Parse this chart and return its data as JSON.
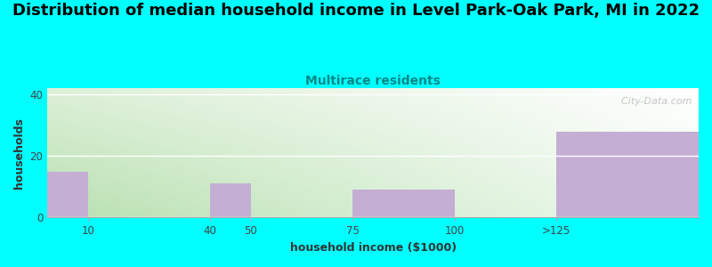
{
  "title": "Distribution of median household income in Level Park-Oak Park, MI in 2022",
  "subtitle": "Multirace residents",
  "xlabel": "household income ($1000)",
  "ylabel": "households",
  "bar_color": "#c4aed4",
  "background_color": "#00ffff",
  "plot_bg_color_topleft": "#ffffff",
  "plot_bg_color_bottomleft": "#c8e6c0",
  "plot_bg_color_topright": "#ffffff",
  "plot_bg_color_bottomright": "#e8f5e0",
  "subtitle_color": "#008888",
  "ylim": [
    0,
    42
  ],
  "yticks": [
    0,
    20,
    40
  ],
  "title_fontsize": 13,
  "subtitle_fontsize": 10,
  "axis_label_fontsize": 9,
  "watermark": "  City-Data.com",
  "bins_left": [
    0,
    10,
    40,
    50,
    75,
    100,
    125
  ],
  "bins_right": [
    10,
    40,
    50,
    75,
    100,
    125,
    160
  ],
  "bin_heights": [
    15,
    0,
    11,
    0,
    9,
    0,
    28
  ],
  "xtick_positions": [
    10,
    40,
    50,
    75,
    100,
    125
  ],
  "xtick_labels": [
    "10",
    "40",
    "50",
    "75",
    "100",
    ">125"
  ]
}
